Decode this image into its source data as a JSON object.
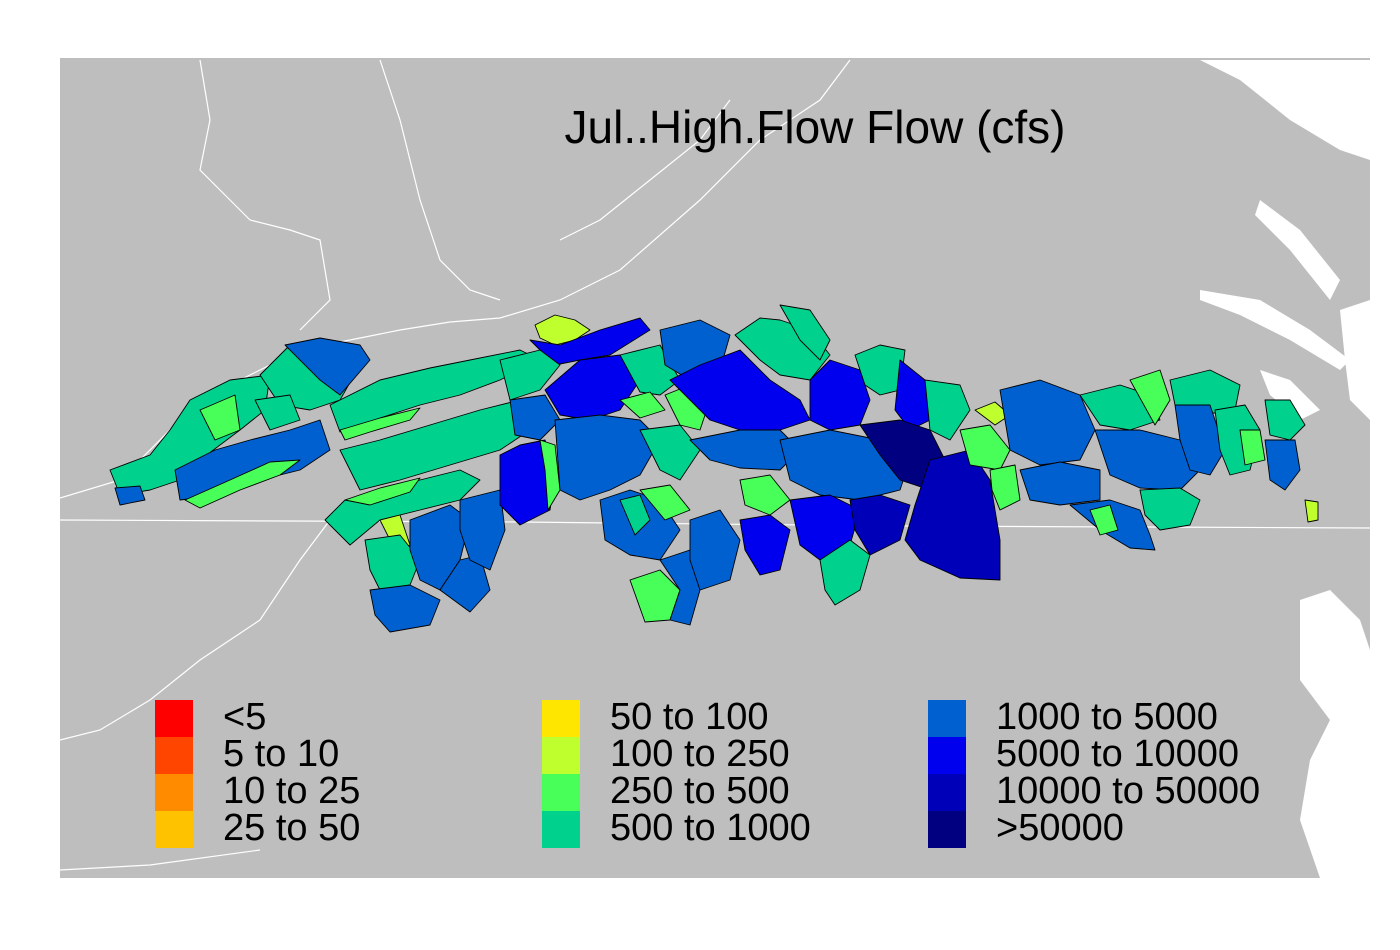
{
  "map": {
    "title": "Jul..High.Flow Flow (cfs)",
    "background_color": "#bebebe",
    "boundary_color": "#ffffff",
    "water_color": "#ffffff"
  },
  "legend": {
    "columns": [
      [
        {
          "label": "<5",
          "color": "#ff0000"
        },
        {
          "label": "5 to 10",
          "color": "#ff4500"
        },
        {
          "label": "10 to 25",
          "color": "#ff8c00"
        },
        {
          "label": "25 to 50",
          "color": "#ffc200"
        }
      ],
      [
        {
          "label": "50 to 100",
          "color": "#ffe600"
        },
        {
          "label": "100 to 250",
          "color": "#c0ff2e"
        },
        {
          "label": "250 to 500",
          "color": "#48ff5a"
        },
        {
          "label": "500 to 1000",
          "color": "#00d28e"
        }
      ],
      [
        {
          "label": "1000 to 5000",
          "color": "#0060d0"
        },
        {
          "label": "5000 to 10000",
          "color": "#0000ee"
        },
        {
          "label": "10000 to 50000",
          "color": "#0000b8"
        },
        {
          "label": ">50000",
          "color": "#000080"
        }
      ]
    ]
  }
}
